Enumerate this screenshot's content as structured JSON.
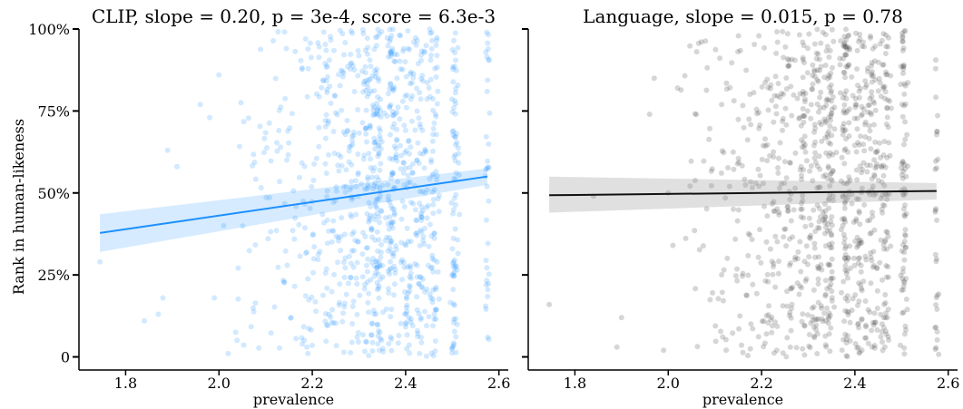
{
  "figure": {
    "ylabel": "Rank in human-likeness"
  },
  "chart_data": [
    {
      "type": "scatter",
      "title": "CLIP, slope = 0.20,  p = 3e-4, score = 6.3e-3",
      "xlabel": "prevalence",
      "ylabel": "Rank in human-likeness",
      "xlim": [
        1.7,
        2.62
      ],
      "ylim": [
        -0.04,
        1.0
      ],
      "xticks": [
        1.8,
        2.0,
        2.2,
        2.4,
        2.6
      ],
      "xtick_labels": [
        "1.8",
        "2.0",
        "2.2",
        "2.4",
        "2.6"
      ],
      "yticks": [
        0,
        0.25,
        0.5,
        0.75,
        1.0
      ],
      "ytick_labels": [
        "0",
        "25%",
        "50%",
        "75%",
        "100%"
      ],
      "point_color": "#1e90ff",
      "line_color": "#1e90ff",
      "band_color": "#1e90ff",
      "regression": {
        "x": [
          1.745,
          2.575
        ],
        "y": [
          0.378,
          0.55
        ]
      },
      "ci_band": {
        "x": [
          1.745,
          2.575
        ],
        "upper": [
          0.435,
          0.575
        ],
        "lower": [
          0.32,
          0.525
        ]
      },
      "seed": 11,
      "points": [
        [
          1.745,
          0.29
        ],
        [
          1.84,
          0.11
        ],
        [
          1.87,
          0.13
        ],
        [
          1.88,
          0.18
        ],
        [
          1.89,
          0.63
        ],
        [
          1.91,
          0.58
        ],
        [
          1.96,
          0.77
        ],
        [
          1.98,
          0.73
        ],
        [
          1.99,
          0.18
        ],
        [
          2.0,
          0.86
        ],
        [
          2.01,
          0.4
        ],
        [
          2.02,
          0.01
        ]
      ],
      "clusters": [
        {
          "x": 2.05,
          "spread": 0.015,
          "n": 10
        },
        {
          "x": 2.08,
          "spread": 0.015,
          "n": 12
        },
        {
          "x": 2.11,
          "spread": 0.02,
          "n": 20
        },
        {
          "x": 2.14,
          "spread": 0.015,
          "n": 22
        },
        {
          "x": 2.17,
          "spread": 0.015,
          "n": 28
        },
        {
          "x": 2.2,
          "spread": 0.015,
          "n": 38
        },
        {
          "x": 2.23,
          "spread": 0.012,
          "n": 50
        },
        {
          "x": 2.26,
          "spread": 0.012,
          "n": 60
        },
        {
          "x": 2.29,
          "spread": 0.01,
          "n": 70
        },
        {
          "x": 2.32,
          "spread": 0.01,
          "n": 90
        },
        {
          "x": 2.34,
          "spread": 0.008,
          "n": 110
        },
        {
          "x": 2.37,
          "spread": 0.008,
          "n": 110
        },
        {
          "x": 2.4,
          "spread": 0.01,
          "n": 90
        },
        {
          "x": 2.43,
          "spread": 0.01,
          "n": 95
        },
        {
          "x": 2.46,
          "spread": 0.008,
          "n": 85
        },
        {
          "x": 2.505,
          "spread": 0.005,
          "n": 80
        },
        {
          "x": 2.575,
          "spread": 0.003,
          "n": 35
        }
      ]
    },
    {
      "type": "scatter",
      "title": "Language, slope = 0.015,  p = 0.78",
      "xlabel": "prevalence",
      "ylabel": "",
      "xlim": [
        1.7,
        2.62
      ],
      "ylim": [
        -0.04,
        1.0
      ],
      "xticks": [
        1.8,
        2.0,
        2.2,
        2.4,
        2.6
      ],
      "xtick_labels": [
        "1.8",
        "2.0",
        "2.2",
        "2.4",
        "2.6"
      ],
      "yticks": [
        0,
        0.25,
        0.5,
        0.75,
        1.0
      ],
      "ytick_labels": [],
      "point_color": "#444444",
      "line_color": "#111111",
      "band_color": "#999999",
      "regression": {
        "x": [
          1.745,
          2.575
        ],
        "y": [
          0.493,
          0.506
        ]
      },
      "ci_band": {
        "x": [
          1.745,
          2.575
        ],
        "upper": [
          0.55,
          0.53
        ],
        "lower": [
          0.44,
          0.48
        ]
      },
      "seed": 29,
      "points": [
        [
          1.745,
          0.16
        ],
        [
          1.84,
          0.49
        ],
        [
          1.89,
          0.03
        ],
        [
          1.9,
          0.12
        ],
        [
          1.96,
          0.74
        ],
        [
          1.97,
          0.85
        ],
        [
          1.99,
          0.02
        ],
        [
          2.0,
          0.5
        ],
        [
          2.01,
          0.34
        ],
        [
          2.02,
          0.82
        ]
      ],
      "clusters": [
        {
          "x": 2.05,
          "spread": 0.015,
          "n": 12
        },
        {
          "x": 2.08,
          "spread": 0.015,
          "n": 14
        },
        {
          "x": 2.11,
          "spread": 0.02,
          "n": 22
        },
        {
          "x": 2.14,
          "spread": 0.015,
          "n": 24
        },
        {
          "x": 2.17,
          "spread": 0.015,
          "n": 30
        },
        {
          "x": 2.2,
          "spread": 0.015,
          "n": 40
        },
        {
          "x": 2.23,
          "spread": 0.012,
          "n": 55
        },
        {
          "x": 2.26,
          "spread": 0.012,
          "n": 65
        },
        {
          "x": 2.29,
          "spread": 0.01,
          "n": 75
        },
        {
          "x": 2.32,
          "spread": 0.01,
          "n": 95
        },
        {
          "x": 2.345,
          "spread": 0.008,
          "n": 115
        },
        {
          "x": 2.38,
          "spread": 0.008,
          "n": 115
        },
        {
          "x": 2.41,
          "spread": 0.01,
          "n": 95
        },
        {
          "x": 2.44,
          "spread": 0.01,
          "n": 95
        },
        {
          "x": 2.465,
          "spread": 0.008,
          "n": 85
        },
        {
          "x": 2.505,
          "spread": 0.005,
          "n": 80
        },
        {
          "x": 2.575,
          "spread": 0.003,
          "n": 30
        }
      ]
    }
  ]
}
